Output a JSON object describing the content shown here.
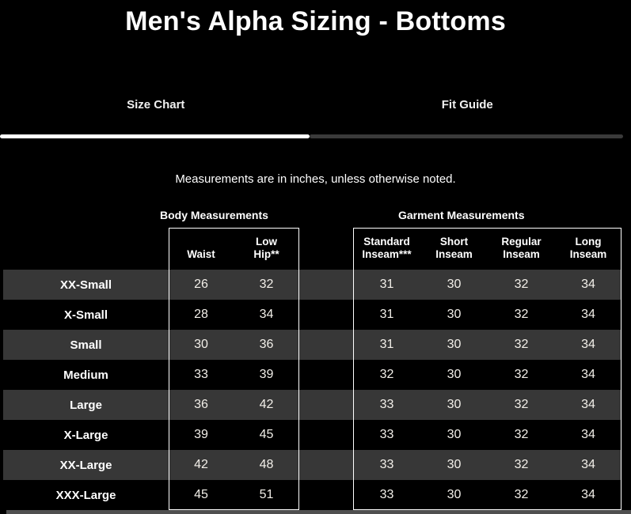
{
  "header": {
    "title": "Men's Alpha Sizing - Bottoms"
  },
  "tabs": [
    {
      "label": "Size Chart",
      "active": true
    },
    {
      "label": "Fit Guide",
      "active": false
    }
  ],
  "note": "Measurements are in inches, unless otherwise noted.",
  "table": {
    "section_labels": {
      "body": "Body Measurements",
      "garment": "Garment Measurements"
    },
    "body_columns": [
      "Waist",
      "Low\nHip**"
    ],
    "garment_columns": [
      "Standard\nInseam***",
      "Short\nInseam",
      "Regular\nInseam",
      "Long\nInseam"
    ],
    "rows": [
      {
        "size": "XX-Small",
        "body": [
          "26",
          "32"
        ],
        "garment": [
          "31",
          "30",
          "32",
          "34"
        ]
      },
      {
        "size": "X-Small",
        "body": [
          "28",
          "34"
        ],
        "garment": [
          "31",
          "30",
          "32",
          "34"
        ]
      },
      {
        "size": "Small",
        "body": [
          "30",
          "36"
        ],
        "garment": [
          "31",
          "30",
          "32",
          "34"
        ]
      },
      {
        "size": "Medium",
        "body": [
          "33",
          "39"
        ],
        "garment": [
          "32",
          "30",
          "32",
          "34"
        ]
      },
      {
        "size": "Large",
        "body": [
          "36",
          "42"
        ],
        "garment": [
          "33",
          "30",
          "32",
          "34"
        ]
      },
      {
        "size": "X-Large",
        "body": [
          "39",
          "45"
        ],
        "garment": [
          "33",
          "30",
          "32",
          "34"
        ]
      },
      {
        "size": "XX-Large",
        "body": [
          "42",
          "48"
        ],
        "garment": [
          "33",
          "30",
          "32",
          "34"
        ]
      },
      {
        "size": "XXX-Large",
        "body": [
          "45",
          "51"
        ],
        "garment": [
          "33",
          "30",
          "32",
          "34"
        ]
      }
    ]
  },
  "colors": {
    "background": "#000000",
    "row_stripe": "#373737",
    "active_tab_indicator": "#ffffff",
    "inactive_tab_indicator": "#3a3a3a",
    "box_border": "#ffffff",
    "heading_text": "#ffffff",
    "number_text": "#f2efe9",
    "scrollbar": "#4f4f4f"
  }
}
